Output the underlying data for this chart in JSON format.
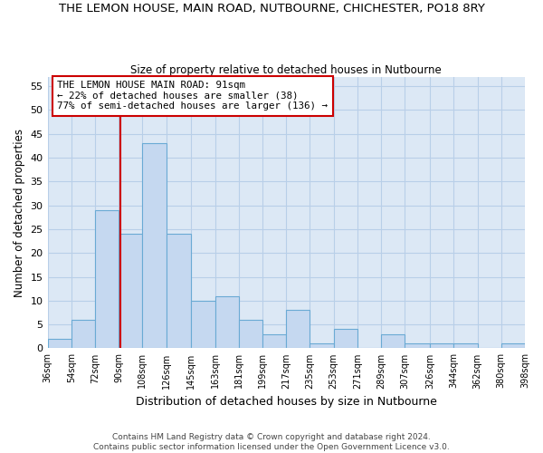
{
  "title": "THE LEMON HOUSE, MAIN ROAD, NUTBOURNE, CHICHESTER, PO18 8RY",
  "subtitle": "Size of property relative to detached houses in Nutbourne",
  "xlabel": "Distribution of detached houses by size in Nutbourne",
  "ylabel": "Number of detached properties",
  "bin_edges": [
    36,
    54,
    72,
    90,
    108,
    126,
    145,
    163,
    181,
    199,
    217,
    235,
    253,
    271,
    289,
    307,
    326,
    344,
    362,
    380,
    398
  ],
  "bar_heights": [
    2,
    6,
    29,
    24,
    43,
    24,
    10,
    11,
    6,
    3,
    8,
    1,
    4,
    0,
    3,
    1,
    1,
    1,
    0,
    1
  ],
  "bar_color": "#c5d8f0",
  "bar_edge_color": "#6aaad4",
  "property_size": 91,
  "annotation_line1": "THE LEMON HOUSE MAIN ROAD: 91sqm",
  "annotation_line2": "← 22% of detached houses are smaller (38)",
  "annotation_line3": "77% of semi-detached houses are larger (136) →",
  "vline_color": "#cc0000",
  "annotation_box_edge_color": "#cc0000",
  "ylim": [
    0,
    57
  ],
  "yticks": [
    0,
    5,
    10,
    15,
    20,
    25,
    30,
    35,
    40,
    45,
    50,
    55
  ],
  "footer_line1": "Contains HM Land Registry data © Crown copyright and database right 2024.",
  "footer_line2": "Contains public sector information licensed under the Open Government Licence v3.0.",
  "bg_color": "#ffffff",
  "plot_bg_color": "#dce8f5",
  "grid_color": "#b8cfe8"
}
